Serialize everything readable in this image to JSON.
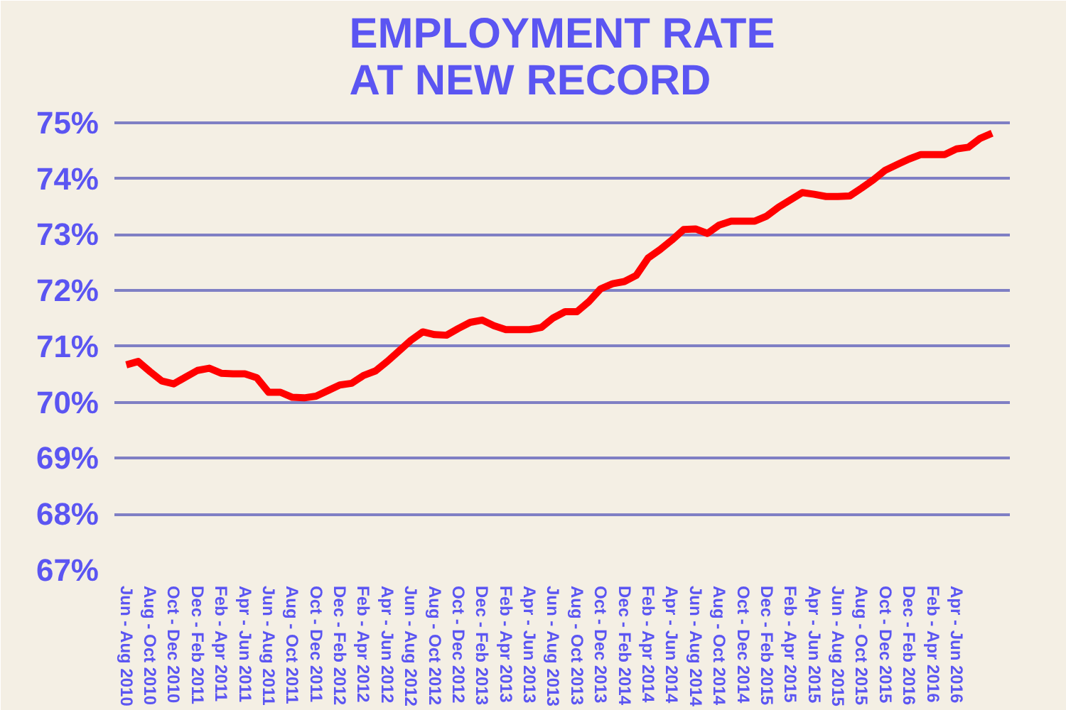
{
  "chart_data": {
    "type": "line",
    "title": "EMPLOYMENT RATE\nAT NEW RECORD",
    "categories": [
      "Jun - Aug 2010",
      null,
      "Aug - Oct 2010",
      null,
      "Oct - Dec 2010",
      null,
      "Dec - Feb 2011",
      null,
      "Feb - Apr 2011",
      null,
      "Apr - Jun 2011",
      null,
      "Jun - Aug 2011",
      null,
      "Aug - Oct 2011",
      null,
      "Oct - Dec 2011",
      null,
      "Dec - Feb 2012",
      null,
      "Feb - Apr 2012",
      null,
      "Apr - Jun 2012",
      null,
      "Jun - Aug 2012",
      null,
      "Aug - Oct 2012",
      null,
      "Oct - Dec 2012",
      null,
      "Dec - Feb 2013",
      null,
      "Feb - Apr 2013",
      null,
      "Apr - Jun 2013",
      null,
      "Jun - Aug 2013",
      null,
      "Aug - Oct 2013",
      null,
      "Oct - Dec 2013",
      null,
      "Dec - Feb 2014",
      null,
      "Feb - Apr 2014",
      null,
      "Apr - Jun 2014",
      null,
      "Jun - Aug 2014",
      null,
      "Aug - Oct 2014",
      null,
      "Oct - Dec 2014",
      null,
      "Dec - Feb 2015",
      null,
      "Feb - Apr 2015",
      null,
      "Apr - Jun 2015",
      null,
      "Jun - Aug 2015",
      null,
      "Aug - Oct 2015",
      null,
      "Oct - Dec 2015",
      null,
      "Dec - Feb 2016",
      null,
      "Feb - Apr 2016",
      null,
      "Apr - Jun 2016",
      null,
      null,
      null
    ],
    "series": [
      {
        "color": "#ff0000",
        "values": [
          70.67,
          70.73,
          70.55,
          70.38,
          70.33,
          70.45,
          70.57,
          70.61,
          70.52,
          70.51,
          70.51,
          70.44,
          70.18,
          70.18,
          70.09,
          70.08,
          70.11,
          70.21,
          70.31,
          70.34,
          70.48,
          70.56,
          70.73,
          70.92,
          71.11,
          71.26,
          71.21,
          71.2,
          71.32,
          71.43,
          71.47,
          71.37,
          71.3,
          71.3,
          71.3,
          71.34,
          71.51,
          71.62,
          71.62,
          71.8,
          72.03,
          72.12,
          72.16,
          72.27,
          72.58,
          72.73,
          72.9,
          73.09,
          73.1,
          73.02,
          73.17,
          73.24,
          73.24,
          73.24,
          73.33,
          73.49,
          73.62,
          73.75,
          73.72,
          73.68,
          73.68,
          73.69,
          73.83,
          73.98,
          74.15,
          74.25,
          74.35,
          74.43,
          74.43,
          74.43,
          74.53,
          74.56,
          74.72,
          74.81
        ]
      }
    ],
    "ylim": [
      67,
      75.2
    ],
    "yticks": [
      {
        "value": 67,
        "label": "67%"
      },
      {
        "value": 68,
        "label": "68%"
      },
      {
        "value": 69,
        "label": "69%"
      },
      {
        "value": 70,
        "label": "70%"
      },
      {
        "value": 71,
        "label": "71%"
      },
      {
        "value": 72,
        "label": "72%"
      },
      {
        "value": 73,
        "label": "73%"
      },
      {
        "value": 74,
        "label": "74%"
      },
      {
        "value": 75,
        "label": "75%"
      }
    ],
    "grid": "y",
    "marker": "none",
    "line_style": "solid"
  }
}
